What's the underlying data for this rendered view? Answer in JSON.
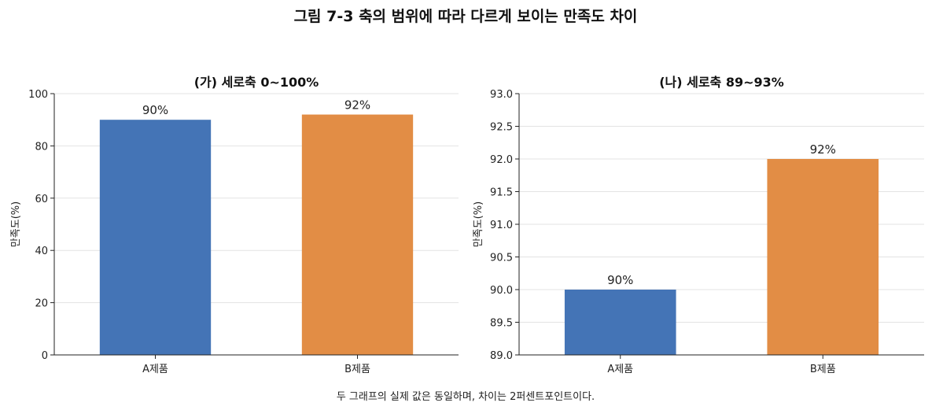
{
  "suptitle": "그림 7-3  축의 범위에 따라 다르게 보이는 만족도 차이",
  "footnote": "두 그래프의 실제 값은 동일하며, 차이는 2퍼센트포인트이다.",
  "chart_data": [
    {
      "type": "bar",
      "title": "(가) 세로축 0~100%",
      "ylabel": "만족도(%)",
      "xlabel": "",
      "categories": [
        "A제품",
        "B제품"
      ],
      "values": [
        90,
        92
      ],
      "data_labels": [
        "90%",
        "92%"
      ],
      "colors": [
        "#4474b6",
        "#e28d45"
      ],
      "ylim": [
        0,
        100
      ],
      "yticks": [
        0,
        20,
        40,
        60,
        80,
        100
      ],
      "ytick_labels": [
        "0",
        "20",
        "40",
        "60",
        "80",
        "100"
      ],
      "grid": "horizontal"
    },
    {
      "type": "bar",
      "title": "(나) 세로축 89~93%",
      "ylabel": "만족도(%)",
      "xlabel": "",
      "categories": [
        "A제품",
        "B제품"
      ],
      "values": [
        90,
        92
      ],
      "data_labels": [
        "90%",
        "92%"
      ],
      "colors": [
        "#4474b6",
        "#e28d45"
      ],
      "ylim": [
        89,
        93
      ],
      "yticks": [
        89,
        89.5,
        90,
        90.5,
        91,
        91.5,
        92,
        92.5,
        93
      ],
      "ytick_labels": [
        "89.0",
        "89.5",
        "90.0",
        "90.5",
        "91.0",
        "91.5",
        "92.0",
        "92.5",
        "93.0"
      ],
      "grid": "horizontal"
    }
  ]
}
